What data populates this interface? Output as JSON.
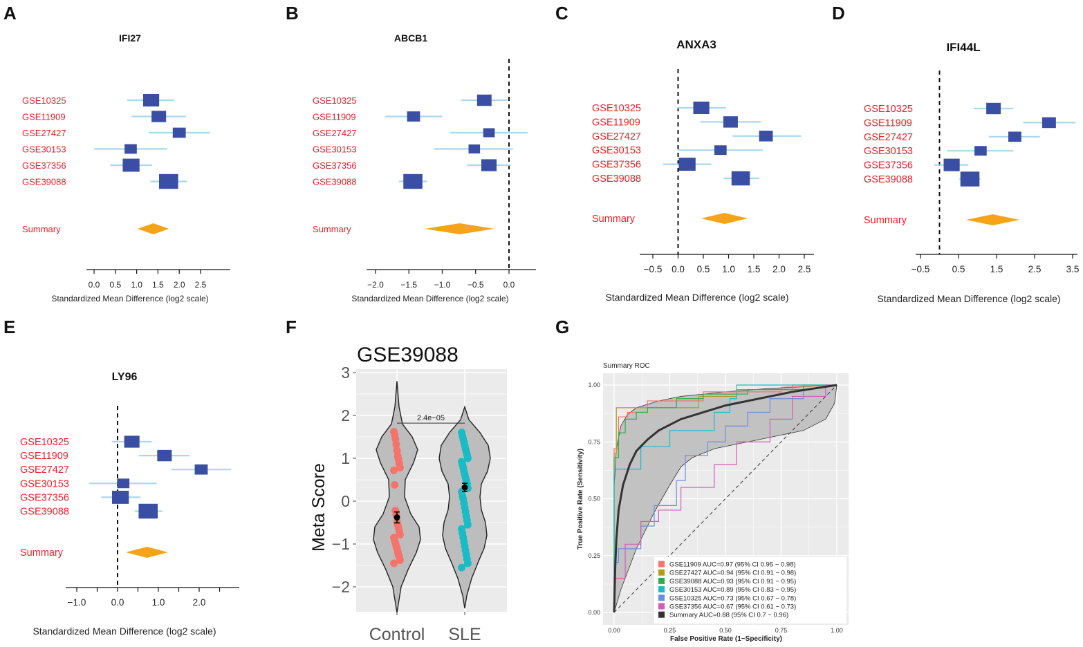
{
  "colors": {
    "study_text": "#e8202a",
    "box": "#3a4fa3",
    "ci": "#a9d7ec",
    "diamond": "#f5a318",
    "violin_fill": "#bdbdbd",
    "violin_bg": "#ebebeb",
    "control": "#f4736b",
    "sle": "#19bcc4",
    "roc_band": "#c2c2c2"
  },
  "forest_panels": [
    {
      "panel": "A",
      "title": "IFI27",
      "null_line": false,
      "studies": [
        {
          "name": "GSE10325",
          "est": 1.34,
          "lo": 0.78,
          "hi": 1.88,
          "w": 1.2
        },
        {
          "name": "GSE11909",
          "est": 1.52,
          "lo": 0.88,
          "hi": 2.16,
          "w": 1.0
        },
        {
          "name": "GSE27427",
          "est": 2.0,
          "lo": 1.28,
          "hi": 2.72,
          "w": 0.8
        },
        {
          "name": "GSE30153",
          "est": 0.86,
          "lo": 0.0,
          "hi": 1.72,
          "w": 0.7
        },
        {
          "name": "GSE37356",
          "est": 0.87,
          "lo": 0.38,
          "hi": 1.36,
          "w": 1.3
        },
        {
          "name": "GSE39088",
          "est": 1.75,
          "lo": 1.32,
          "hi": 2.18,
          "w": 1.6
        }
      ],
      "summary": {
        "label": "Summary",
        "est": 1.39,
        "lo": 1.02,
        "hi": 1.76
      },
      "ticks": [
        0.0,
        0.5,
        1.0,
        1.5,
        2.0,
        2.5
      ],
      "tick_labels": [
        "0.0",
        "0.5",
        "1.0",
        "1.5",
        "2.0",
        "2.5"
      ],
      "xaxis_label": "Standardized Mean Difference (log2 scale)"
    },
    {
      "panel": "B",
      "title": "ABCB1",
      "null_line": true,
      "studies": [
        {
          "name": "GSE10325",
          "est": -0.37,
          "lo": -0.72,
          "hi": -0.02,
          "w": 1.0
        },
        {
          "name": "GSE11909",
          "est": -1.43,
          "lo": -1.86,
          "hi": -1.0,
          "w": 0.8
        },
        {
          "name": "GSE27427",
          "est": -0.3,
          "lo": -0.88,
          "hi": 0.28,
          "w": 0.6
        },
        {
          "name": "GSE30153",
          "est": -0.52,
          "lo": -1.12,
          "hi": 0.06,
          "w": 0.6
        },
        {
          "name": "GSE37356",
          "est": -0.3,
          "lo": -0.63,
          "hi": 0.03,
          "w": 1.1
        },
        {
          "name": "GSE39088",
          "est": -1.44,
          "lo": -1.65,
          "hi": -1.23,
          "w": 1.6
        }
      ],
      "summary": {
        "label": "Summary",
        "est": -0.74,
        "lo": -1.26,
        "hi": -0.22
      },
      "ticks": [
        -2.0,
        -1.5,
        -1.0,
        -0.5,
        0.0
      ],
      "tick_labels": [
        "−2.0",
        "−1.5",
        "−1.0",
        "−0.5",
        "0.0"
      ],
      "xaxis_label": "Standardized Mean Difference (log2 scale)"
    },
    {
      "panel": "C",
      "title": "ANXA3",
      "null_line": true,
      "studies": [
        {
          "name": "GSE10325",
          "est": 0.46,
          "lo": -0.02,
          "hi": 0.95,
          "w": 1.2
        },
        {
          "name": "GSE11909",
          "est": 1.04,
          "lo": 0.44,
          "hi": 1.64,
          "w": 1.0
        },
        {
          "name": "GSE27427",
          "est": 1.74,
          "lo": 1.08,
          "hi": 2.44,
          "w": 0.9
        },
        {
          "name": "GSE30153",
          "est": 0.84,
          "lo": 0.0,
          "hi": 1.68,
          "w": 0.7
        },
        {
          "name": "GSE37356",
          "est": 0.18,
          "lo": -0.3,
          "hi": 0.66,
          "w": 1.3
        },
        {
          "name": "GSE39088",
          "est": 1.24,
          "lo": 0.9,
          "hi": 1.6,
          "w": 1.5
        }
      ],
      "summary": {
        "label": "Summary",
        "est": 0.92,
        "lo": 0.46,
        "hi": 1.38
      },
      "ticks": [
        -0.5,
        0.0,
        0.5,
        1.0,
        1.5,
        2.0,
        2.5
      ],
      "tick_labels": [
        "−0.5",
        "0.0",
        "0.5",
        "1.0",
        "1.5",
        "2.0",
        "2.5"
      ],
      "xaxis_label": "Standardized Mean Difference (log2 scale)"
    },
    {
      "panel": "D",
      "title": "IFI44L",
      "null_line": true,
      "studies": [
        {
          "name": "GSE10325",
          "est": 1.42,
          "lo": 0.9,
          "hi": 1.94,
          "w": 1.0
        },
        {
          "name": "GSE11909",
          "est": 2.88,
          "lo": 2.2,
          "hi": 3.58,
          "w": 0.9
        },
        {
          "name": "GSE27427",
          "est": 1.98,
          "lo": 1.3,
          "hi": 2.64,
          "w": 0.8
        },
        {
          "name": "GSE30153",
          "est": 1.08,
          "lo": 0.2,
          "hi": 1.94,
          "w": 0.7
        },
        {
          "name": "GSE37356",
          "est": 0.32,
          "lo": -0.14,
          "hi": 0.76,
          "w": 1.2
        },
        {
          "name": "GSE39088",
          "est": 0.8,
          "lo": 0.52,
          "hi": 1.08,
          "w": 1.6
        }
      ],
      "summary": {
        "label": "Summary",
        "est": 1.4,
        "lo": 0.7,
        "hi": 2.1
      },
      "ticks": [
        -0.5,
        0.5,
        1.5,
        2.5,
        3.5
      ],
      "tick_labels": [
        "−0.5",
        "0.5",
        "1.5",
        "2.5",
        "3.5"
      ],
      "xaxis_label": "Standardized Mean Difference (log2 scale)"
    },
    {
      "panel": "E",
      "title": "LY96",
      "null_line": true,
      "studies": [
        {
          "name": "GSE10325",
          "est": 0.35,
          "lo": -0.14,
          "hi": 0.84,
          "w": 1.1
        },
        {
          "name": "GSE11909",
          "est": 1.15,
          "lo": 0.52,
          "hi": 1.76,
          "w": 1.0
        },
        {
          "name": "GSE27427",
          "est": 2.05,
          "lo": 1.32,
          "hi": 2.78,
          "w": 0.8
        },
        {
          "name": "GSE30153",
          "est": 0.14,
          "lo": -0.7,
          "hi": 0.96,
          "w": 0.7
        },
        {
          "name": "GSE37356",
          "est": 0.07,
          "lo": -0.4,
          "hi": 0.56,
          "w": 1.3
        },
        {
          "name": "GSE39088",
          "est": 0.75,
          "lo": 0.42,
          "hi": 1.1,
          "w": 1.6
        }
      ],
      "summary": {
        "label": "Summary",
        "est": 0.72,
        "lo": 0.2,
        "hi": 1.24
      },
      "ticks": [
        -1.0,
        -0.5,
        0.0,
        0.5,
        1.0,
        1.5,
        2.0,
        2.5
      ],
      "tick_labels": [
        "−1.0",
        "",
        "0.0",
        "",
        "1.0",
        "",
        "2.0",
        ""
      ],
      "xaxis_label": "Standardized Mean Difference (log2 scale)"
    }
  ],
  "violin": {
    "panel": "F",
    "title": "GSE39088",
    "ylabel": "Meta Score",
    "ylim": [
      -2.5,
      3.2
    ],
    "yticks": [
      -2,
      -1,
      0,
      1,
      2,
      3
    ],
    "ytick_labels": [
      "−2",
      "−1",
      "0",
      "1",
      "2",
      "3"
    ],
    "groups": [
      {
        "name": "Control",
        "mean": -0.38,
        "se": 0.08,
        "points": [
          1.62,
          1.55,
          1.45,
          1.32,
          1.18,
          1.05,
          0.98,
          0.88,
          0.78,
          0.72,
          0.38,
          -0.22,
          -0.32,
          -0.48,
          -0.55,
          -0.62,
          -0.7,
          -0.78,
          -0.85,
          -0.92,
          -0.98,
          -1.05,
          -1.1,
          -1.18,
          -1.25,
          -1.3,
          -1.38,
          -1.45
        ]
      },
      {
        "name": "SLE",
        "mean": 0.32,
        "se": 0.06,
        "points": [
          1.6,
          1.52,
          1.45,
          1.38,
          1.3,
          1.22,
          1.15,
          1.08,
          1.0,
          0.92,
          0.85,
          0.78,
          0.7,
          0.62,
          0.55,
          0.48,
          0.4,
          0.3,
          0.22,
          0.12,
          0.05,
          -0.05,
          -0.15,
          -0.25,
          -0.35,
          -0.45,
          -0.55,
          -0.65,
          -0.75,
          -0.85,
          -0.95,
          -1.05,
          -1.15,
          -1.25,
          -1.35,
          -1.45,
          -1.55
        ]
      }
    ],
    "pvalue": "2.4e−05"
  },
  "roc": {
    "panel": "G",
    "title": "Summary ROC",
    "xlabel": "False Positive Rate (1−Specificity)",
    "ylabel": "True Positive Rate (Sensitivity)",
    "ticks": [
      0.0,
      0.25,
      0.5,
      0.75,
      1.0
    ],
    "tick_labels": [
      "0.00",
      "0.25",
      "0.50",
      "0.75",
      "1.00"
    ],
    "series": [
      {
        "label": "GSE11909 AUC=0.97 (95% CI 0.95 − 0.98)",
        "color": "#f4736b",
        "pts": [
          [
            0,
            0
          ],
          [
            0,
            0.72
          ],
          [
            0.02,
            0.72
          ],
          [
            0.02,
            0.86
          ],
          [
            0.06,
            0.86
          ],
          [
            0.06,
            0.88
          ],
          [
            0.15,
            0.88
          ],
          [
            0.15,
            0.93
          ],
          [
            0.4,
            0.93
          ],
          [
            0.4,
            0.97
          ],
          [
            0.75,
            0.97
          ],
          [
            0.75,
            0.99
          ],
          [
            1,
            1
          ]
        ]
      },
      {
        "label": "GSE27427 AUC=0.94 (95% CI 0.91 − 0.98)",
        "color": "#b59a1c",
        "pts": [
          [
            0,
            0
          ],
          [
            0,
            0.7
          ],
          [
            0.01,
            0.7
          ],
          [
            0.01,
            0.9
          ],
          [
            0.38,
            0.9
          ],
          [
            0.38,
            0.95
          ],
          [
            0.55,
            0.95
          ],
          [
            0.55,
            0.98
          ],
          [
            0.8,
            0.98
          ],
          [
            0.8,
            1
          ],
          [
            1,
            1
          ]
        ]
      },
      {
        "label": "GSE39088 AUC=0.93 (95% CI 0.91 − 0.95)",
        "color": "#2fae45",
        "pts": [
          [
            0,
            0
          ],
          [
            0,
            0.68
          ],
          [
            0.02,
            0.68
          ],
          [
            0.02,
            0.79
          ],
          [
            0.05,
            0.79
          ],
          [
            0.05,
            0.85
          ],
          [
            0.1,
            0.85
          ],
          [
            0.1,
            0.88
          ],
          [
            0.15,
            0.88
          ],
          [
            0.15,
            0.9
          ],
          [
            0.28,
            0.9
          ],
          [
            0.28,
            0.94
          ],
          [
            0.4,
            0.94
          ],
          [
            0.4,
            0.96
          ],
          [
            0.6,
            0.96
          ],
          [
            0.6,
            0.98
          ],
          [
            0.85,
            0.98
          ],
          [
            0.85,
            1
          ],
          [
            1,
            1
          ]
        ]
      },
      {
        "label": "GSE30153 AUC=0.89 (95% CI 0.83 − 0.95)",
        "color": "#19bcc4",
        "pts": [
          [
            0,
            0
          ],
          [
            0,
            0.63
          ],
          [
            0.12,
            0.63
          ],
          [
            0.12,
            0.73
          ],
          [
            0.25,
            0.73
          ],
          [
            0.25,
            0.8
          ],
          [
            0.45,
            0.8
          ],
          [
            0.45,
            0.88
          ],
          [
            0.52,
            0.88
          ],
          [
            0.52,
            0.94
          ],
          [
            0.55,
            0.94
          ],
          [
            0.55,
            1
          ],
          [
            1,
            1
          ]
        ]
      },
      {
        "label": "GSE10325 AUC=0.73 (95% CI 0.67 − 0.78)",
        "color": "#6c8ee0",
        "pts": [
          [
            0,
            0
          ],
          [
            0,
            0.22
          ],
          [
            0.02,
            0.22
          ],
          [
            0.02,
            0.28
          ],
          [
            0.12,
            0.28
          ],
          [
            0.12,
            0.38
          ],
          [
            0.18,
            0.38
          ],
          [
            0.18,
            0.47
          ],
          [
            0.28,
            0.47
          ],
          [
            0.28,
            0.58
          ],
          [
            0.32,
            0.58
          ],
          [
            0.32,
            0.69
          ],
          [
            0.42,
            0.69
          ],
          [
            0.42,
            0.75
          ],
          [
            0.5,
            0.75
          ],
          [
            0.5,
            0.82
          ],
          [
            0.6,
            0.82
          ],
          [
            0.6,
            0.88
          ],
          [
            0.7,
            0.88
          ],
          [
            0.7,
            0.94
          ],
          [
            0.85,
            0.94
          ],
          [
            0.85,
            0.98
          ],
          [
            1,
            1
          ]
        ]
      },
      {
        "label": "GSE37356 AUC=0.67 (95% CI 0.61 − 0.73)",
        "color": "#d25bb6",
        "pts": [
          [
            0,
            0
          ],
          [
            0,
            0.15
          ],
          [
            0.05,
            0.15
          ],
          [
            0.05,
            0.3
          ],
          [
            0.12,
            0.3
          ],
          [
            0.12,
            0.4
          ],
          [
            0.2,
            0.4
          ],
          [
            0.2,
            0.45
          ],
          [
            0.3,
            0.45
          ],
          [
            0.3,
            0.55
          ],
          [
            0.45,
            0.55
          ],
          [
            0.45,
            0.65
          ],
          [
            0.55,
            0.65
          ],
          [
            0.55,
            0.75
          ],
          [
            0.7,
            0.75
          ],
          [
            0.7,
            0.85
          ],
          [
            0.8,
            0.85
          ],
          [
            0.8,
            0.95
          ],
          [
            0.95,
            0.95
          ],
          [
            0.95,
            1
          ],
          [
            1,
            1
          ]
        ]
      },
      {
        "label": "Summary AUC=0.88 (95% CI 0.7 − 0.96)",
        "color": "#333333",
        "pts": [
          [
            0,
            0
          ],
          [
            0.005,
            0.2
          ],
          [
            0.01,
            0.32
          ],
          [
            0.02,
            0.45
          ],
          [
            0.04,
            0.56
          ],
          [
            0.07,
            0.65
          ],
          [
            0.1,
            0.71
          ],
          [
            0.15,
            0.76
          ],
          [
            0.2,
            0.8
          ],
          [
            0.3,
            0.85
          ],
          [
            0.4,
            0.88
          ],
          [
            0.5,
            0.91
          ],
          [
            0.6,
            0.93
          ],
          [
            0.7,
            0.95
          ],
          [
            0.8,
            0.97
          ],
          [
            0.9,
            0.985
          ],
          [
            1,
            1
          ]
        ]
      }
    ],
    "band_upper": [
      [
        0,
        0
      ],
      [
        0,
        0.55
      ],
      [
        0.01,
        0.72
      ],
      [
        0.03,
        0.82
      ],
      [
        0.06,
        0.87
      ],
      [
        0.1,
        0.9
      ],
      [
        0.2,
        0.93
      ],
      [
        0.3,
        0.95
      ],
      [
        0.5,
        0.97
      ],
      [
        0.7,
        0.985
      ],
      [
        0.9,
        0.995
      ],
      [
        1,
        1
      ]
    ],
    "band_lower": [
      [
        0,
        0
      ],
      [
        0.03,
        0.1
      ],
      [
        0.1,
        0.28
      ],
      [
        0.18,
        0.44
      ],
      [
        0.25,
        0.56
      ],
      [
        0.3,
        0.64
      ],
      [
        0.35,
        0.68
      ],
      [
        0.45,
        0.72
      ],
      [
        0.55,
        0.74
      ],
      [
        0.65,
        0.76
      ],
      [
        0.75,
        0.78
      ],
      [
        0.85,
        0.8
      ],
      [
        0.95,
        0.85
      ],
      [
        0.99,
        0.92
      ],
      [
        1,
        1
      ]
    ]
  }
}
